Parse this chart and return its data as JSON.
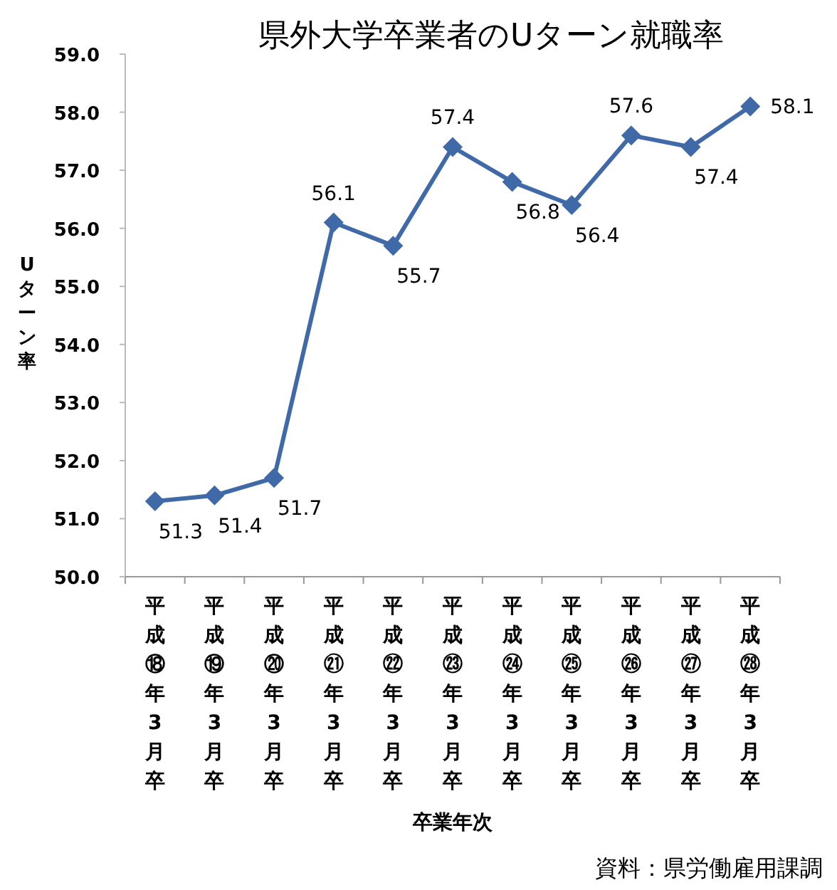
{
  "chart_data": {
    "type": "line",
    "title": "県外大学卒業者のUターン就職率",
    "xlabel": "卒業年次",
    "ylabel": "Uターン率",
    "categories": [
      "平成⑱年3月卒",
      "平成⑲年3月卒",
      "平成⑳年3月卒",
      "平成㉑年3月卒",
      "平成㉒年3月卒",
      "平成㉓年3月卒",
      "平成㉔年3月卒",
      "平成㉕年3月卒",
      "平成㉖年3月卒",
      "平成㉗年3月卒",
      "平成㉘年3月卒"
    ],
    "series": [
      {
        "color": "#4069a8",
        "values": [
          51.3,
          51.4,
          51.7,
          56.1,
          55.7,
          57.4,
          56.8,
          56.4,
          57.6,
          57.4,
          58.1
        ]
      }
    ],
    "ylim": [
      50,
      59
    ],
    "yticks": [
      {
        "value": 50,
        "label": "50.0"
      },
      {
        "value": 51,
        "label": "51.0"
      },
      {
        "value": 52,
        "label": "52.0"
      },
      {
        "value": 53,
        "label": "53.0"
      },
      {
        "value": 54,
        "label": "54.0"
      },
      {
        "value": 55,
        "label": "55.0"
      },
      {
        "value": 56,
        "label": "56.0"
      },
      {
        "value": 57,
        "label": "57.0"
      },
      {
        "value": 58,
        "label": "58.0"
      },
      {
        "value": 59,
        "label": "59.0"
      }
    ],
    "data_labels": true,
    "marker": "diamond",
    "line_style": "solid",
    "grid": false,
    "annotations": [
      "資料：県労働雇用課調"
    ]
  }
}
